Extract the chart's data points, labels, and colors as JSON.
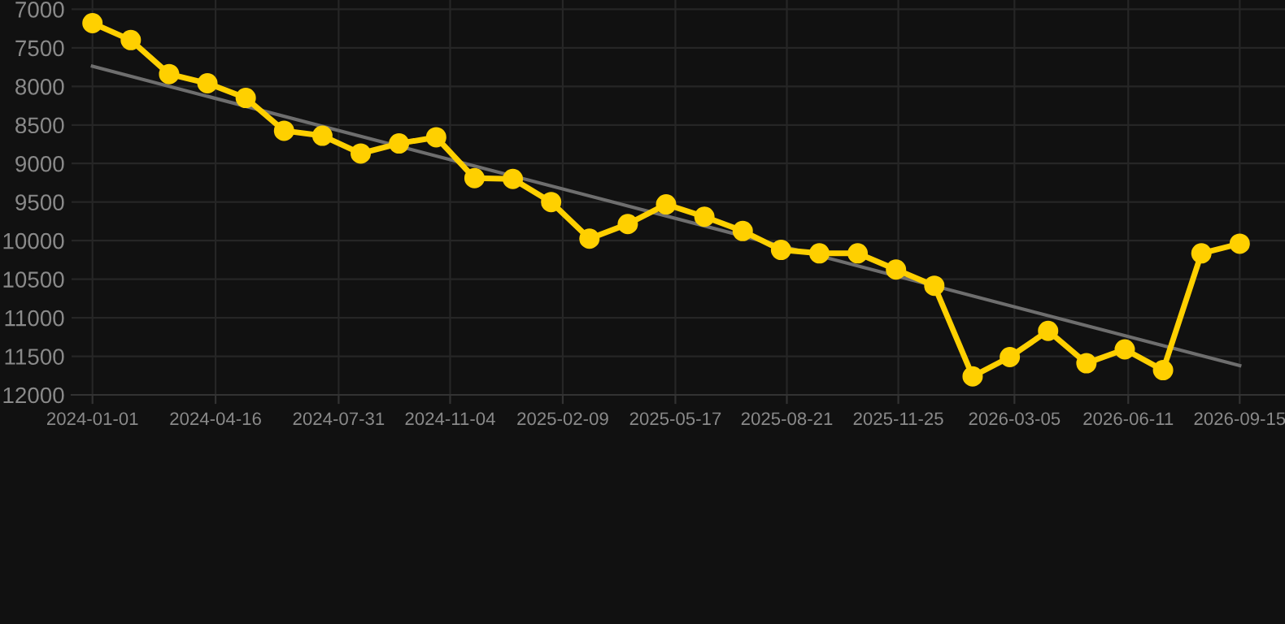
{
  "chart_data": {
    "type": "line",
    "x": [
      "2024-01-01",
      "2024-02-03",
      "2024-03-07",
      "2024-04-09",
      "2024-05-12",
      "2024-06-14",
      "2024-07-17",
      "2024-08-19",
      "2024-09-21",
      "2024-10-23",
      "2024-11-25",
      "2024-12-28",
      "2025-01-30",
      "2025-03-04",
      "2025-04-06",
      "2025-05-09",
      "2025-06-11",
      "2025-07-14",
      "2025-08-16",
      "2025-09-18",
      "2025-10-21",
      "2025-11-23",
      "2025-12-26",
      "2026-01-28",
      "2026-03-01",
      "2026-04-03",
      "2026-05-06",
      "2026-06-08",
      "2026-07-11",
      "2026-08-13",
      "2026-09-15"
    ],
    "series": [
      {
        "color": "#ffd000",
        "marker": "circle",
        "values": [
          7180,
          7400,
          7840,
          7960,
          8150,
          8575,
          8640,
          8870,
          8740,
          8660,
          9190,
          9200,
          9500,
          9975,
          9785,
          9530,
          9690,
          9875,
          10120,
          10165,
          10165,
          10375,
          10585,
          11760,
          11510,
          11170,
          11590,
          11410,
          11680,
          10165,
          10040
        ]
      },
      {
        "type": "line",
        "color": "#6e6e6e",
        "marker": "none",
        "x": [
          "2024-01-01",
          "2026-09-15"
        ],
        "values": [
          7740,
          11620
        ]
      }
    ],
    "ylim": [
      12000,
      6880
    ],
    "yticks": [
      7000,
      7500,
      8000,
      8500,
      9000,
      9500,
      10000,
      10500,
      11000,
      11500,
      12000
    ],
    "xlim": [
      "2023-12-14",
      "2026-10-24"
    ],
    "xticks": [
      "2024-01-01",
      "2024-04-16",
      "2024-07-31",
      "2024-11-04",
      "2025-02-09",
      "2025-05-17",
      "2025-08-21",
      "2025-11-25",
      "2026-03-05",
      "2026-06-11",
      "2026-09-15"
    ],
    "grid": true,
    "line_style": "solid"
  }
}
